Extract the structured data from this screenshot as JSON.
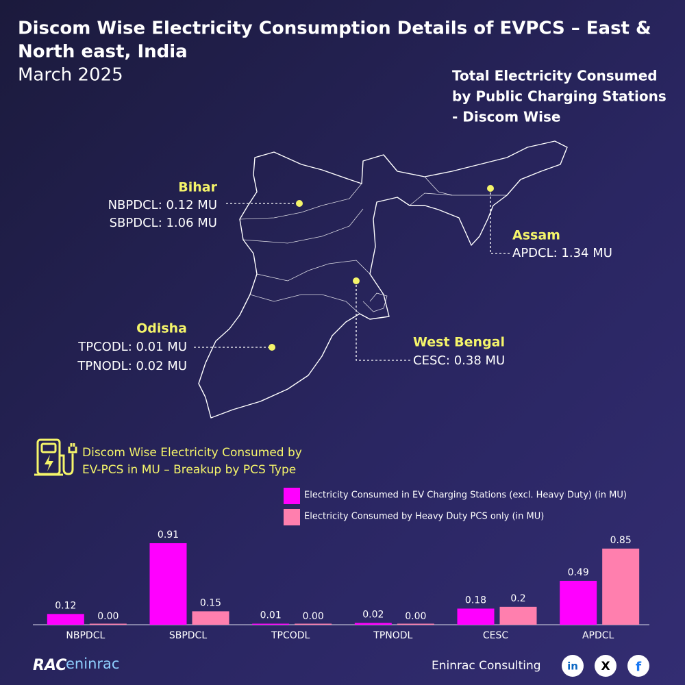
{
  "header": {
    "title_lines": [
      "Discom Wise Electricity Consumption Details of EVPCS – East &",
      "North east, India"
    ],
    "subtitle": "March 2025"
  },
  "map": {
    "heading_lines": [
      "Total Electricity Consumed",
      "by Public Charging Stations",
      "- Discom Wise"
    ],
    "regions": [
      {
        "name": "Bihar",
        "lines": [
          "NBPDCL: 0.12 MU",
          "SBPDCL: 1.06 MU"
        ]
      },
      {
        "name": "Assam",
        "lines": [
          "APDCL: 1.34 MU"
        ]
      },
      {
        "name": "Odisha",
        "lines": [
          "TPCODL: 0.01 MU",
          "TPNODL: 0.02 MU"
        ]
      },
      {
        "name": "West Bengal",
        "lines": [
          "CESC: 0.38 MU"
        ]
      }
    ]
  },
  "chart_data": {
    "type": "bar",
    "title_lines": [
      "Discom Wise Electricity Consumed by",
      "EV-PCS in MU – Breakup by PCS Type"
    ],
    "categories": [
      "NBPDCL",
      "SBPDCL",
      "TPCODL",
      "TPNODL",
      "CESC",
      "APDCL"
    ],
    "series": [
      {
        "name": "Electricity Consumed in EV Charging Stations (excl. Heavy Duty) (in MU)",
        "color": "#ff00ff",
        "values": [
          0.12,
          0.91,
          0.01,
          0.02,
          0.18,
          0.49
        ]
      },
      {
        "name": "Electricity Consumed by Heavy Duty PCS only (in MU)",
        "color": "#ff7fae",
        "values": [
          0,
          0.15,
          0,
          0,
          0.2,
          0.85
        ],
        "value_labels": [
          "0.00",
          "0.15",
          "0.00",
          "0.00",
          "0.2",
          "0.85"
        ]
      }
    ]
  },
  "footer": {
    "logo": [
      "RAC",
      "eninrac"
    ],
    "company": "Eninrac Consulting",
    "social": [
      "in",
      "X",
      "f"
    ]
  }
}
